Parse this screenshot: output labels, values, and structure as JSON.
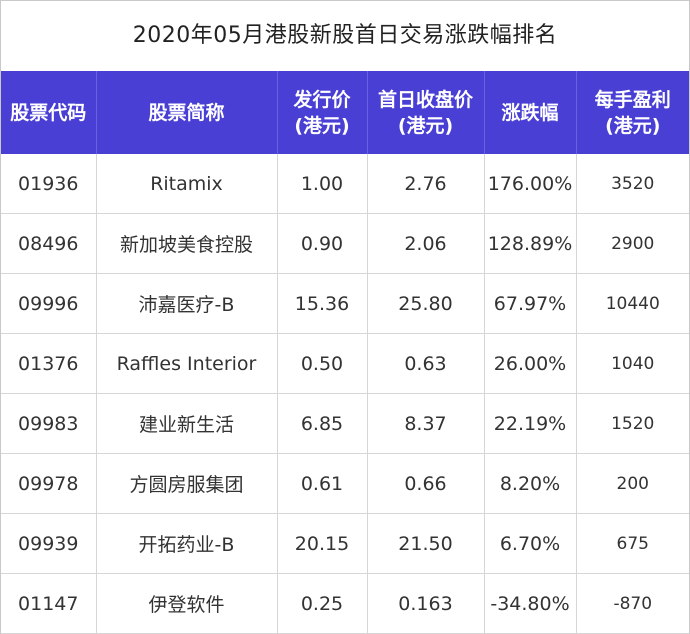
{
  "title": "2020年05月港股新股首日交易涨跌幅排名",
  "colors": {
    "header_bg": "#4a3fd4",
    "header_text": "#ffffff",
    "grid": "#d6d6d6"
  },
  "header": {
    "code": [
      "股票代码"
    ],
    "name": [
      "股票简称"
    ],
    "issue_price": [
      "发行价",
      "(港元)"
    ],
    "first_close": [
      "首日收盘价",
      "(港元)"
    ],
    "change": [
      "涨跌幅"
    ],
    "lot_profit": [
      "每手盈利",
      "(港元)"
    ]
  },
  "chart_data": {
    "type": "table",
    "title": "2020年05月港股新股首日交易涨跌幅排名",
    "columns": [
      "股票代码",
      "股票简称",
      "发行价(港元)",
      "首日收盘价(港元)",
      "涨跌幅",
      "每手盈利(港元)"
    ],
    "rows": [
      [
        "01936",
        "Ritamix",
        "1.00",
        "2.76",
        "176.00%",
        "3520"
      ],
      [
        "08496",
        "新加坡美食控股",
        "0.90",
        "2.06",
        "128.89%",
        "2900"
      ],
      [
        "09996",
        "沛嘉医疗-B",
        "15.36",
        "25.80",
        "67.97%",
        "10440"
      ],
      [
        "01376",
        "Raffles Interior",
        "0.50",
        "0.63",
        "26.00%",
        "1040"
      ],
      [
        "09983",
        "建业新生活",
        "6.85",
        "8.37",
        "22.19%",
        "1520"
      ],
      [
        "09978",
        "方圆房服集团",
        "0.61",
        "0.66",
        "8.20%",
        "200"
      ],
      [
        "09939",
        "开拓药业-B",
        "20.15",
        "21.50",
        "6.70%",
        "675"
      ],
      [
        "01147",
        "伊登软件",
        "0.25",
        "0.163",
        "-34.80%",
        "-870"
      ]
    ]
  }
}
